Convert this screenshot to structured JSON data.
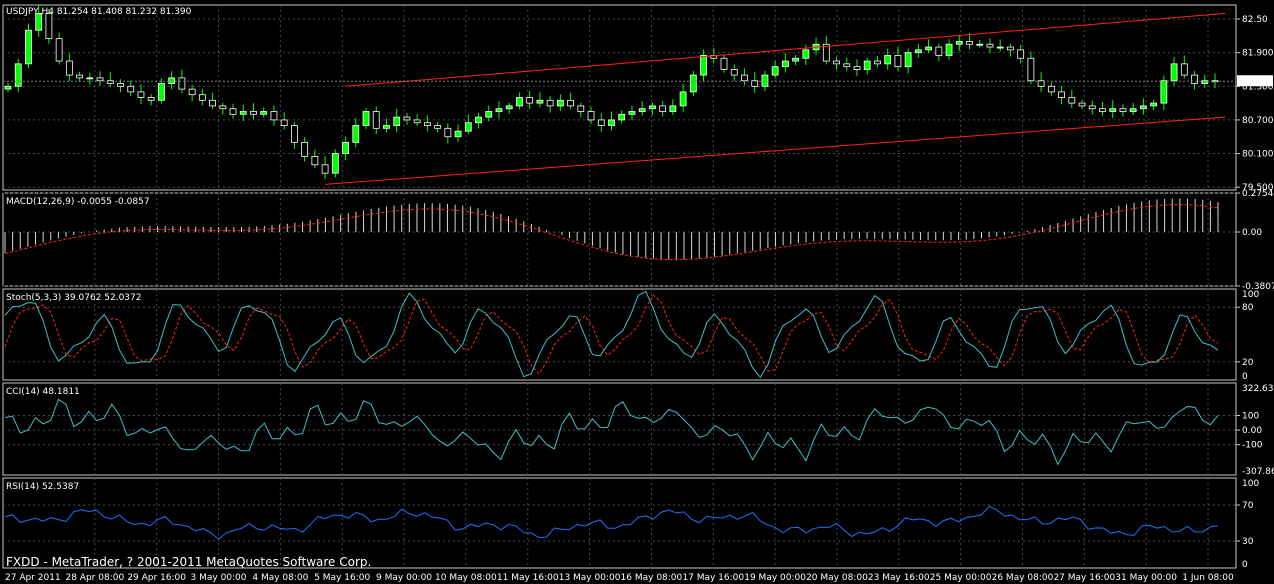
{
  "chart_data": {
    "type": "candlestick",
    "symbol_header": "USDJPY,H4  81.254 81.408 81.232 81.390",
    "price_axis": {
      "ticks": [
        "82.50",
        "81.900",
        "81.300",
        "80.700",
        "80.100",
        "79.500"
      ],
      "values": [
        82.5,
        81.9,
        81.3,
        80.7,
        80.1,
        79.5
      ],
      "range": [
        79.45,
        82.75
      ],
      "current_price_label": "81.390",
      "current_price": 81.39
    },
    "time_labels": [
      "27 Apr 2011",
      "28 Apr 08:00",
      "29 Apr 16:00",
      "3 May 00:00",
      "4 May 08:00",
      "5 May 16:00",
      "9 May 00:00",
      "10 May 08:00",
      "11 May 16:00",
      "13 May 00:00",
      "16 May 08:00",
      "17 May 16:00",
      "19 May 00:00",
      "20 May 08:00",
      "23 May 16:00",
      "25 May 00:00",
      "26 May 08:00",
      "27 May 16:00",
      "31 May 00:00",
      "1 Jun 08:00"
    ],
    "close": [
      81.3,
      81.7,
      82.3,
      82.6,
      82.15,
      81.75,
      81.5,
      81.45,
      81.45,
      81.4,
      81.35,
      81.3,
      81.2,
      81.1,
      81.05,
      81.35,
      81.45,
      81.25,
      81.15,
      81.05,
      80.95,
      80.9,
      80.8,
      80.85,
      80.8,
      80.85,
      80.7,
      80.6,
      80.3,
      80.05,
      79.9,
      79.75,
      80.1,
      80.3,
      80.6,
      80.85,
      80.55,
      80.6,
      80.75,
      80.7,
      80.65,
      80.6,
      80.55,
      80.4,
      80.5,
      80.65,
      80.75,
      80.85,
      80.9,
      80.95,
      81.1,
      81.0,
      81.05,
      80.95,
      81.05,
      80.95,
      80.85,
      80.7,
      80.6,
      80.7,
      80.8,
      80.85,
      80.9,
      80.95,
      80.85,
      80.95,
      81.2,
      81.5,
      81.85,
      81.8,
      81.6,
      81.5,
      81.4,
      81.3,
      81.5,
      81.65,
      81.75,
      81.8,
      81.95,
      82.05,
      81.75,
      81.7,
      81.65,
      81.6,
      81.75,
      81.7,
      81.85,
      81.65,
      81.9,
      81.95,
      82.0,
      81.85,
      82.05,
      82.1,
      82.05,
      82.05,
      82.0,
      82.0,
      81.95,
      81.8,
      81.4,
      81.3,
      81.2,
      81.1,
      81.0,
      80.95,
      80.9,
      80.85,
      80.9,
      80.85,
      80.9,
      80.95,
      81.0,
      81.4,
      81.7,
      81.5,
      81.35,
      81.4,
      81.39
    ],
    "trend_channel": {
      "upper": [
        [
          33,
          81.3
        ],
        [
          119,
          82.6
        ]
      ],
      "lower": [
        [
          31,
          79.55
        ],
        [
          119,
          80.75
        ]
      ],
      "color": "#ff2020"
    },
    "indicators": [
      {
        "name": "MACD",
        "header": "MACD(12,26,9) -0.0055 -0.0857",
        "axis_ticks": [
          "0.2754",
          "0.00",
          "-0.3807"
        ],
        "range": [
          -0.3807,
          0.2754
        ]
      },
      {
        "name": "Stochastic",
        "header": "Stoch(5,3,3) 39.0762 52.0372",
        "axis_ticks": [
          "100",
          "80",
          "20",
          "0"
        ],
        "range": [
          0,
          100
        ]
      },
      {
        "name": "CCI",
        "header": "CCI(14) 48.1811",
        "axis_ticks": [
          "322.637",
          "100",
          "0.00",
          "-100",
          "-307.863"
        ],
        "range": [
          -307.863,
          322.637
        ]
      },
      {
        "name": "RSI",
        "header": "RSI(14) 52.5387",
        "axis_ticks": [
          "100",
          "70",
          "30",
          "0"
        ],
        "range": [
          0,
          100
        ]
      }
    ]
  },
  "footer": {
    "copyright": "FXDD - MetaTrader, ? 2001-2011 MetaQuotes Software Corp."
  },
  "colors": {
    "background": "#000000",
    "bull_body": "#00ff00",
    "bear_body": "#000000",
    "wick": "#00ff00",
    "grid": "#4a4a4a",
    "macd_hist": "#d8d8d8",
    "signal": "#ff2020",
    "stoch_main": "#40c0c0",
    "cci_line": "#40c0c0",
    "rsi_line": "#2070ff"
  }
}
